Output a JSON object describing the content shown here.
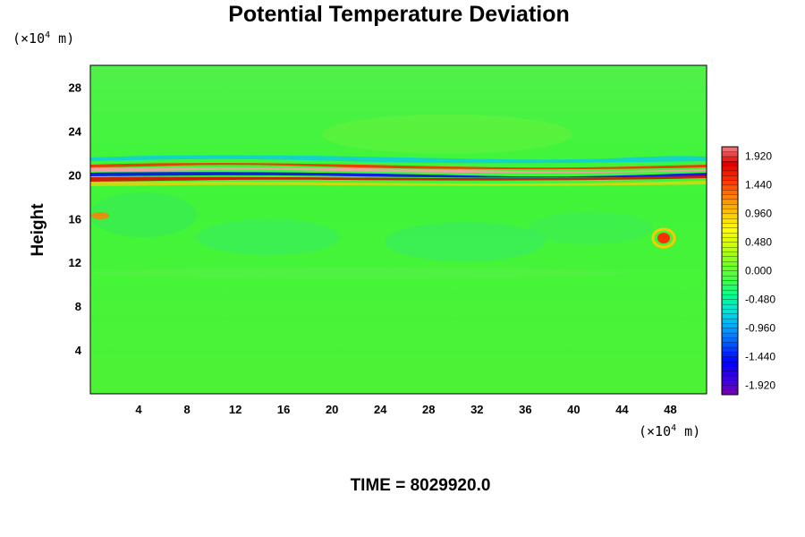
{
  "chart_data": {
    "type": "heatmap",
    "title": "Potential Temperature Deviation",
    "ylabel": "Height",
    "y_unit": "(×10",
    "y_unit_exp": "4",
    "y_unit_tail": " m)",
    "x_unit": "(×10",
    "x_unit_exp": "4",
    "x_unit_tail": " m)",
    "xlim": [
      0,
      51
    ],
    "ylim": [
      0,
      30
    ],
    "x_ticks": [
      "4",
      "8",
      "12",
      "16",
      "20",
      "24",
      "28",
      "32",
      "36",
      "40",
      "44",
      "48"
    ],
    "y_ticks": [
      "4",
      "8",
      "12",
      "16",
      "20",
      "24",
      "28"
    ],
    "colorbar": {
      "range": [
        -2.08,
        2.08
      ],
      "step": 0.08,
      "labels": [
        "1.920",
        "1.440",
        "0.960",
        "0.480",
        "0.000",
        "-0.480",
        "-0.960",
        "-1.440",
        "-1.920"
      ],
      "colors": [
        "#7a00b8",
        "#3a00e6",
        "#0000ff",
        "#0050ff",
        "#00a0ff",
        "#00e0e0",
        "#00ff90",
        "#44ff44",
        "#7cff22",
        "#c8ff00",
        "#ffff00",
        "#ffc800",
        "#ff8000",
        "#ff3000",
        "#e00000",
        "#f08080"
      ]
    },
    "background_value": 0.05,
    "features": [
      {
        "name": "upper stratified layer",
        "x_range": [
          0,
          51
        ],
        "y_range": [
          19,
          22.5
        ],
        "min": -1.9,
        "max": 1.9
      },
      {
        "name": "warm patch right",
        "x": 47,
        "y": 13.7,
        "value": 1.4
      },
      {
        "name": "warm patch left",
        "x": 1.2,
        "y": 16.2,
        "value": 1.0
      }
    ],
    "time_label": "TIME = 8029920.0"
  }
}
